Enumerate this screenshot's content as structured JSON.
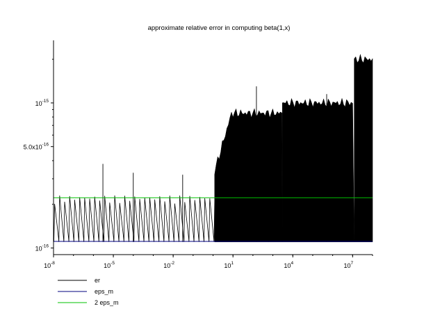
{
  "chart_data": {
    "type": "line",
    "title": "approximate relative error in computing beta(1,x)",
    "xlabel": "",
    "ylabel": "",
    "x_scale": "log",
    "y_scale": "log",
    "xlim": [
      1e-08,
      100000000.0
    ],
    "ylim": [
      9e-17,
      2.7e-15
    ],
    "x_ticks": [
      {
        "value": 1e-08,
        "base": "10",
        "exp": "-8"
      },
      {
        "value": 1e-05,
        "base": "10",
        "exp": "-5"
      },
      {
        "value": 0.01,
        "base": "10",
        "exp": "-2"
      },
      {
        "value": 10,
        "base": "10",
        "exp": "1"
      },
      {
        "value": 10000.0,
        "base": "10",
        "exp": "4"
      },
      {
        "value": 10000000.0,
        "base": "10",
        "exp": "7"
      }
    ],
    "y_ticks": [
      {
        "value": 1e-16,
        "base": "10",
        "exp": "-16"
      },
      {
        "value": 5e-16,
        "base": "5.0x10",
        "exp": "-16"
      },
      {
        "value": 1e-15,
        "base": "10",
        "exp": "-15"
      }
    ],
    "grid": false,
    "legend_position": "bottom-left",
    "series": [
      {
        "name": "er",
        "color": "#000000",
        "description": "oscillating sawtooth between 1.1e-16 and ~2.3e-16 for x<10, dense band up to ~1e-15 for 10<x<1e4, ~1e-15 for 1e4<x<1e7, ~2e-15 above 1e7",
        "segments": [
          {
            "x_from": 1e-08,
            "x_to": 1.2,
            "y_min": 1.1e-16,
            "y_max": 2.3e-16
          },
          {
            "x_from": 1.2,
            "x_to": 3000,
            "y_min": 1.1e-16,
            "y_max": 8.5e-16
          },
          {
            "x_from": 3000,
            "x_to": 12000000.0,
            "y_min": 1.1e-16,
            "y_max": 1e-15
          },
          {
            "x_from": 12000000.0,
            "x_to": 100000000.0,
            "y_min": 1.1e-16,
            "y_max": 2e-15
          }
        ],
        "spikes": [
          {
            "x": 3e-06,
            "y": 3.8e-16
          },
          {
            "x": 0.0001,
            "y": 3.3e-16
          },
          {
            "x": 0.03,
            "y": 3.2e-16
          },
          {
            "x": 8,
            "y": 8.2e-16
          },
          {
            "x": 150,
            "y": 1.3e-15
          },
          {
            "x": 600,
            "y": 8e-16
          },
          {
            "x": 500000.0,
            "y": 1.15e-15
          }
        ]
      },
      {
        "name": "eps_m",
        "color": "#00007f",
        "y_constant": 1.11e-16
      },
      {
        "name": "2 eps_m",
        "color": "#00c000",
        "y_constant": 2.22e-16
      }
    ]
  }
}
